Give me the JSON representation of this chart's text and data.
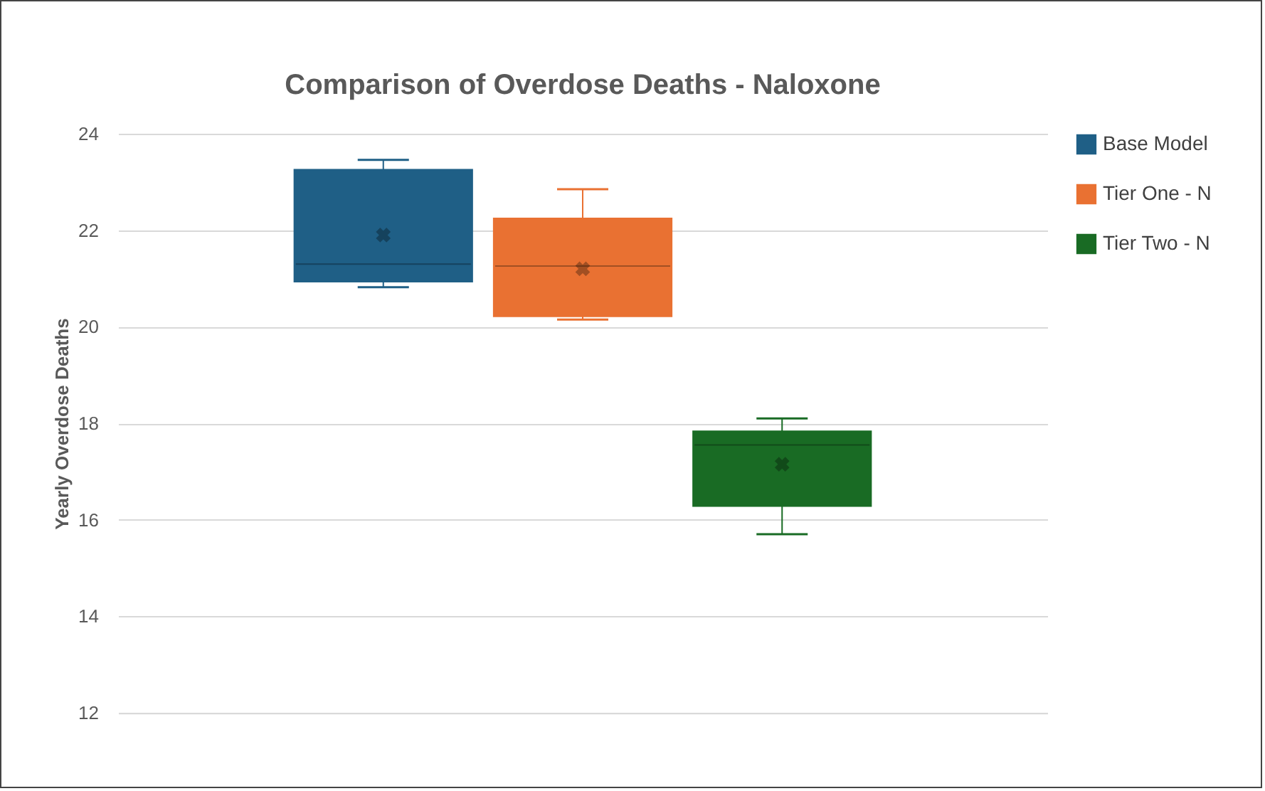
{
  "chart_data": {
    "type": "box",
    "title": "Comparison of Overdose Deaths - Naloxone",
    "ylabel": "Yearly Overdose Deaths",
    "categories": [
      null
    ],
    "ylim": [
      12,
      24
    ],
    "yticks": [
      12,
      14,
      16,
      18,
      20,
      22,
      24
    ],
    "grid": "y",
    "legend": "right",
    "tick_labels": "y",
    "series": [
      {
        "name": "Base Model",
        "color": "#1f5f86",
        "boxes": [
          {
            "low": 20.82,
            "q1": 20.92,
            "median": 21.3,
            "q3": 23.27,
            "high": 23.46,
            "mean": 21.9
          }
        ]
      },
      {
        "name": "Tier One - N",
        "color": "#e97132",
        "boxes": [
          {
            "low": 20.15,
            "q1": 20.2,
            "median": 21.26,
            "q3": 22.26,
            "high": 22.85,
            "mean": 21.2
          }
        ]
      },
      {
        "name": "Tier Two - N",
        "color": "#196b24",
        "boxes": [
          {
            "low": 15.7,
            "q1": 16.27,
            "median": 17.55,
            "q3": 17.85,
            "high": 18.1,
            "mean": 17.15
          }
        ]
      }
    ]
  }
}
